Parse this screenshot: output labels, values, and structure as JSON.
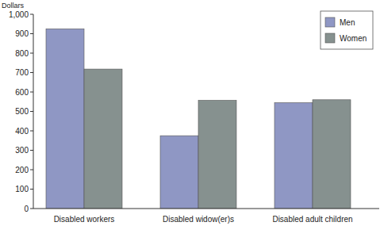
{
  "chart_data": {
    "type": "bar",
    "y_label": "Dollars",
    "categories": [
      "Disabled workers",
      "Disabled widow(er)s",
      "Disabled adult children"
    ],
    "series": [
      {
        "name": "Men",
        "color": "#8f97c4",
        "values": [
          925,
          375,
          545
        ]
      },
      {
        "name": "Women",
        "color": "#86918f",
        "values": [
          718,
          557,
          560
        ]
      }
    ],
    "ylim": [
      0,
      1000
    ],
    "yticks": [
      0,
      100,
      200,
      300,
      400,
      500,
      600,
      700,
      800,
      900,
      {
        "value": 1000,
        "label": "1,000"
      }
    ],
    "grid": false,
    "legend": "top-right"
  }
}
